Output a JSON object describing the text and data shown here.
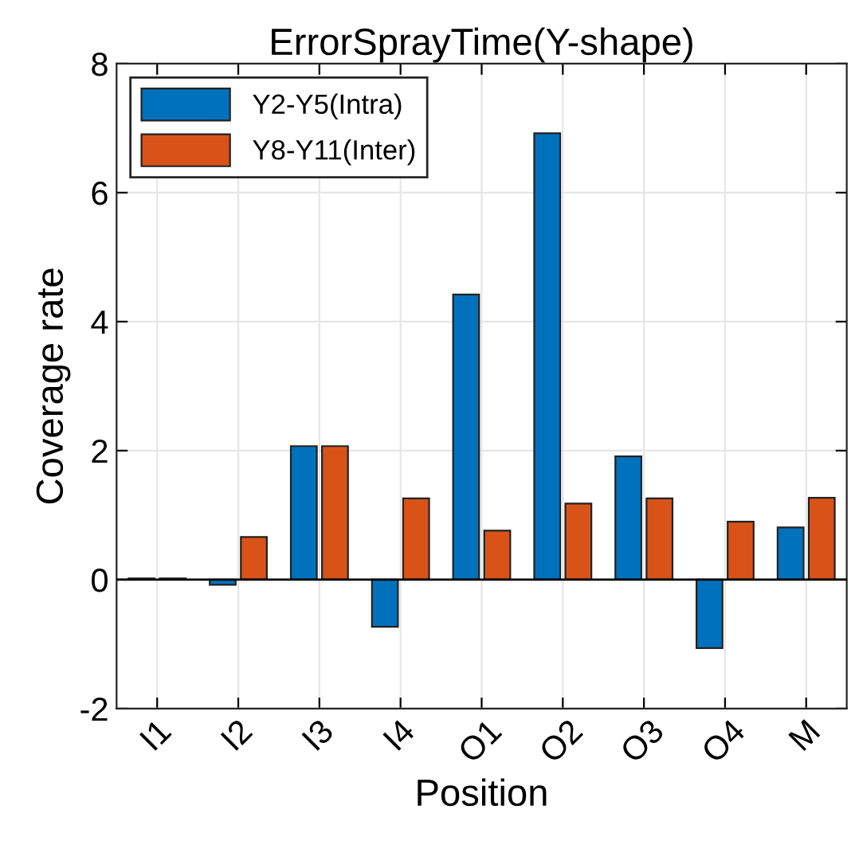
{
  "chart_data": {
    "type": "bar",
    "title": "ErrorSprayTime(Y-shape)",
    "xlabel": "Position",
    "ylabel": "Coverage rate",
    "categories": [
      "I1",
      "I2",
      "I3",
      "I4",
      "O1",
      "O2",
      "O3",
      "O4",
      "M"
    ],
    "series": [
      {
        "name": "Y2-Y5(Intra)",
        "color": "#0072bd",
        "values": [
          0.02,
          -0.08,
          2.07,
          -0.73,
          4.42,
          6.92,
          1.91,
          -1.06,
          0.81
        ]
      },
      {
        "name": "Y8-Y11(Inter)",
        "color": "#d95319",
        "values": [
          0.02,
          0.66,
          2.07,
          1.26,
          0.76,
          1.18,
          1.26,
          0.9,
          1.27
        ]
      }
    ],
    "ylim": [
      -2,
      8
    ],
    "yticks": [
      -2,
      0,
      2,
      4,
      6,
      8
    ],
    "grid": true,
    "legend": "top left",
    "ref_lines": [
      {
        "axis": "y",
        "value": 0,
        "color": "#000000"
      }
    ]
  }
}
